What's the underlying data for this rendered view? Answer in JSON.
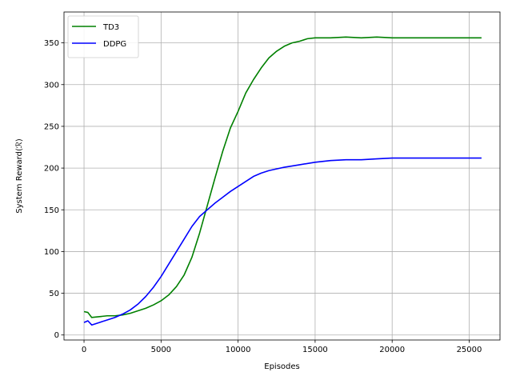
{
  "chart_data": {
    "type": "line",
    "title": "",
    "xlabel": "Episodes",
    "ylabel": "System Reward(ℛ)",
    "xlim": [
      -1300,
      27000
    ],
    "ylim": [
      -6,
      387
    ],
    "xticks": [
      0,
      5000,
      10000,
      15000,
      20000,
      25000
    ],
    "xtick_labels": [
      "0",
      "5000",
      "10000",
      "15000",
      "20000",
      "25000"
    ],
    "yticks": [
      0,
      50,
      100,
      150,
      200,
      250,
      300,
      350
    ],
    "ytick_labels": [
      "0",
      "50",
      "100",
      "150",
      "200",
      "250",
      "300",
      "350"
    ],
    "grid": true,
    "legend_position": "upper-left",
    "series": [
      {
        "name": "TD3",
        "color": "#008000",
        "x": [
          0,
          250,
          500,
          1000,
          1500,
          2000,
          2500,
          3000,
          3500,
          4000,
          4500,
          5000,
          5500,
          6000,
          6500,
          7000,
          7500,
          8000,
          8500,
          9000,
          9500,
          10000,
          10500,
          11000,
          11500,
          12000,
          12500,
          13000,
          13500,
          14000,
          14500,
          15000,
          16000,
          17000,
          18000,
          19000,
          20000,
          21000,
          22000,
          23000,
          24000,
          25000,
          25800
        ],
        "y": [
          28,
          27,
          21,
          22,
          23,
          23,
          24,
          26,
          29,
          32,
          36,
          41,
          48,
          58,
          72,
          93,
          122,
          155,
          188,
          220,
          248,
          268,
          290,
          306,
          320,
          332,
          340,
          346,
          350,
          352,
          355,
          356,
          356,
          357,
          356,
          357,
          356,
          356,
          356,
          356,
          356,
          356,
          356
        ]
      },
      {
        "name": "DDPG",
        "color": "#0000ff",
        "x": [
          0,
          250,
          500,
          1000,
          1500,
          2000,
          2500,
          3000,
          3500,
          4000,
          4500,
          5000,
          5500,
          6000,
          6500,
          7000,
          7500,
          8000,
          8500,
          9000,
          9500,
          10000,
          10500,
          11000,
          11500,
          12000,
          12500,
          13000,
          14000,
          15000,
          16000,
          17000,
          18000,
          19000,
          20000,
          21000,
          22000,
          23000,
          24000,
          25000,
          25800
        ],
        "y": [
          15,
          17,
          12,
          15,
          18,
          21,
          25,
          30,
          37,
          46,
          57,
          70,
          85,
          100,
          115,
          130,
          142,
          150,
          158,
          165,
          172,
          178,
          184,
          190,
          194,
          197,
          199,
          201,
          204,
          207,
          209,
          210,
          210,
          211,
          212,
          212,
          212,
          212,
          212,
          212,
          212
        ]
      }
    ]
  }
}
